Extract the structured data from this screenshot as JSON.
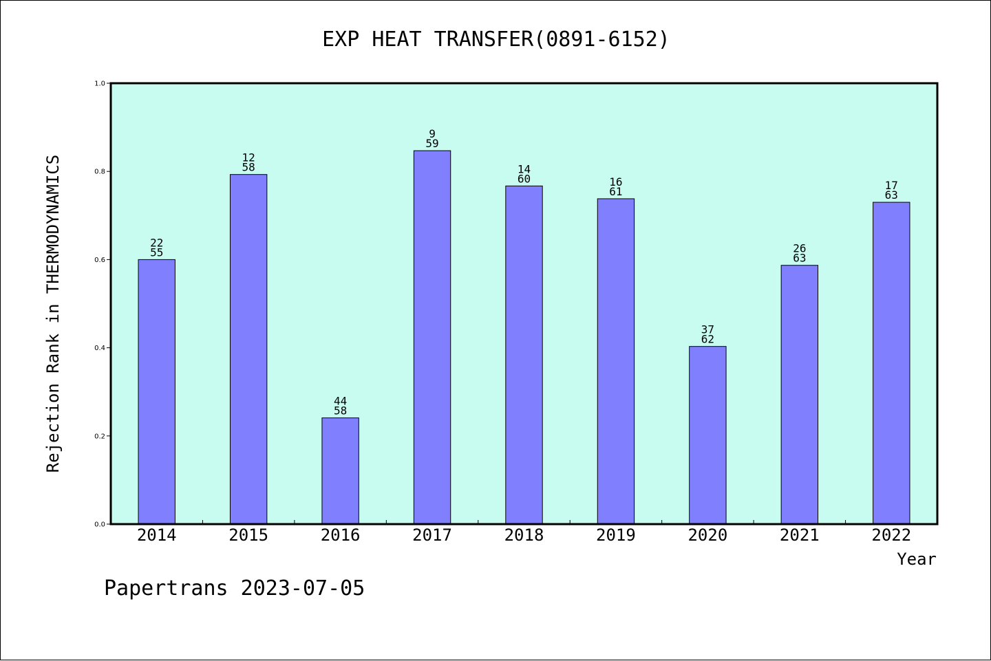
{
  "chart_data": {
    "type": "bar",
    "title": "EXP HEAT TRANSFER(0891-6152)",
    "xlabel": "Year",
    "ylabel": "Rejection Rank in THERMODYNAMICS",
    "ylim": [
      0,
      1.0
    ],
    "yticks": [
      "0.0",
      "0.2",
      "0.4",
      "0.6",
      "0.8",
      "1.0"
    ],
    "categories": [
      "2014",
      "2015",
      "2016",
      "2017",
      "2018",
      "2019",
      "2020",
      "2021",
      "2022"
    ],
    "values": [
      0.6,
      0.793,
      0.241,
      0.847,
      0.767,
      0.738,
      0.403,
      0.587,
      0.73
    ],
    "labels_top": [
      "22",
      "12",
      "44",
      "9",
      "14",
      "16",
      "37",
      "26",
      "17"
    ],
    "labels_bottom": [
      "55",
      "58",
      "58",
      "59",
      "60",
      "61",
      "62",
      "63",
      "63"
    ],
    "grid": false,
    "colors": {
      "plot_bg": "#c8fcf0",
      "bar": "#8080ff"
    }
  },
  "footer": {
    "text": "Papertrans 2023-07-05"
  }
}
